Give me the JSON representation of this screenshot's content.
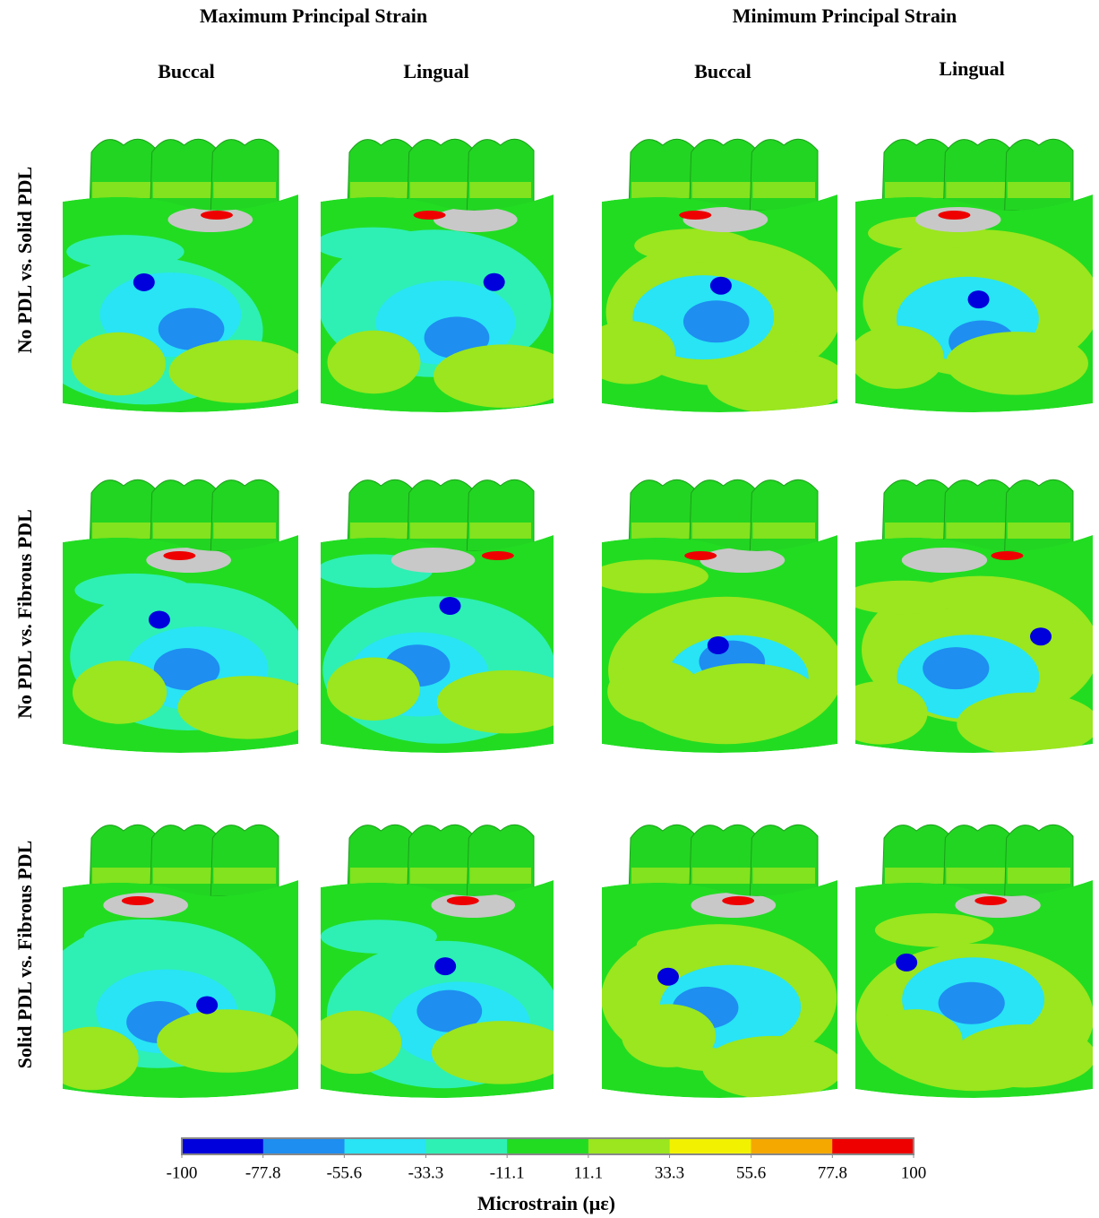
{
  "headers": [
    {
      "title": "Maximum Principal Strain",
      "columns": [
        "Buccal",
        "Lingual"
      ]
    },
    {
      "title": "Minimum Principal Strain",
      "columns": [
        "Buccal",
        "Lingual"
      ]
    }
  ],
  "rows": [
    "No PDL vs. Solid PDL",
    "No PDL vs. Fibrous PDL",
    "Solid PDL vs. Fibrous PDL"
  ],
  "colorbar": {
    "ticks": [
      -100,
      -77.8,
      -55.6,
      -33.3,
      -11.1,
      11.1,
      33.3,
      55.6,
      77.8,
      100
    ],
    "colors": [
      "#0000dc",
      "#1e8ef0",
      "#28e4f5",
      "#2ef0b4",
      "#22dc22",
      "#9be61e",
      "#f2f200",
      "#f5a800",
      "#ee0000"
    ],
    "label": "Microstrain (με)"
  }
}
